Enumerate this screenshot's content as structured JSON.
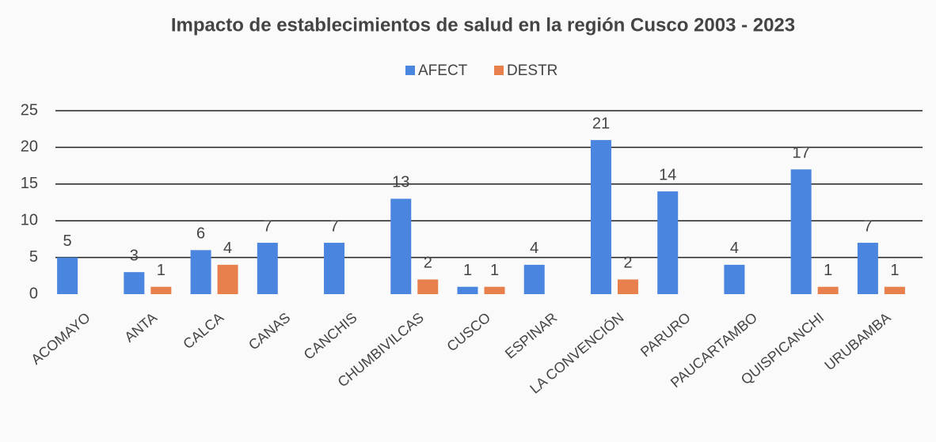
{
  "chart_data": {
    "type": "bar",
    "title": "Impacto de establecimientos de salud en la región Cusco 2003 - 2023",
    "categories": [
      "ACOMAYO",
      "ANTA",
      "CALCA",
      "CANAS",
      "CANCHIS",
      "CHUMBIVILCAS",
      "CUSCO",
      "ESPINAR",
      "LA CONVENCIÓN",
      "PARURO",
      "PAUCARTAMBO",
      "QUISPICANCHI",
      "URUBAMBA"
    ],
    "series": [
      {
        "name": "AFECT",
        "color": "#4a86e0",
        "values": [
          5,
          3,
          6,
          7,
          7,
          13,
          1,
          4,
          21,
          14,
          4,
          17,
          7
        ],
        "label_colors": [
          "#333",
          "#333",
          "#333",
          "#333",
          "#333",
          "#333",
          "#333",
          "#333",
          "#e8404a",
          "#333",
          "#333",
          "#e8404a",
          "#333"
        ]
      },
      {
        "name": "DESTR",
        "color": "#e8804e",
        "values": [
          null,
          1,
          4,
          null,
          null,
          2,
          1,
          null,
          2,
          null,
          null,
          1,
          1
        ],
        "label_colors": [
          "#333",
          "#333",
          "#333",
          "#333",
          "#333",
          "#333",
          "#333",
          "#333",
          "#e8404a",
          "#333",
          "#333",
          "#e8404a",
          "#333"
        ]
      }
    ],
    "ylim": [
      0,
      25
    ],
    "yticks": [
      0,
      5,
      10,
      15,
      20,
      25
    ],
    "grid": true,
    "legend": "top"
  }
}
